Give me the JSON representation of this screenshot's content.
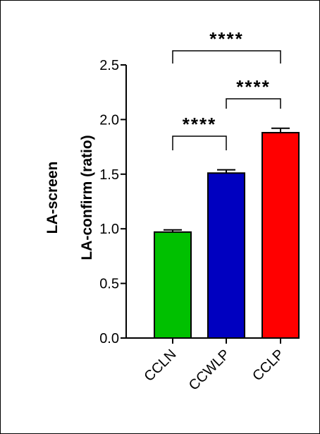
{
  "chart_data": {
    "type": "bar",
    "ylabel": [
      "LA-screen",
      "LA-confirm (ratio)"
    ],
    "ylim": [
      0,
      2.5
    ],
    "yticks": [
      0.0,
      0.5,
      1.0,
      1.5,
      2.0,
      2.5
    ],
    "ytick_labels": [
      "0.0",
      "0.5",
      "1.0",
      "1.5",
      "2.0",
      "2.5"
    ],
    "categories": [
      "CCLN",
      "CCWLP",
      "CCLP"
    ],
    "values": [
      0.97,
      1.51,
      1.88
    ],
    "errors": [
      0.02,
      0.03,
      0.04
    ],
    "colors": [
      "#00c000",
      "#0000c0",
      "#ff0000"
    ],
    "grid": false,
    "significance": [
      {
        "from": 0,
        "to": 1,
        "label": "****"
      },
      {
        "from": 1,
        "to": 2,
        "label": "****"
      },
      {
        "from": 0,
        "to": 2,
        "label": "****"
      }
    ]
  }
}
